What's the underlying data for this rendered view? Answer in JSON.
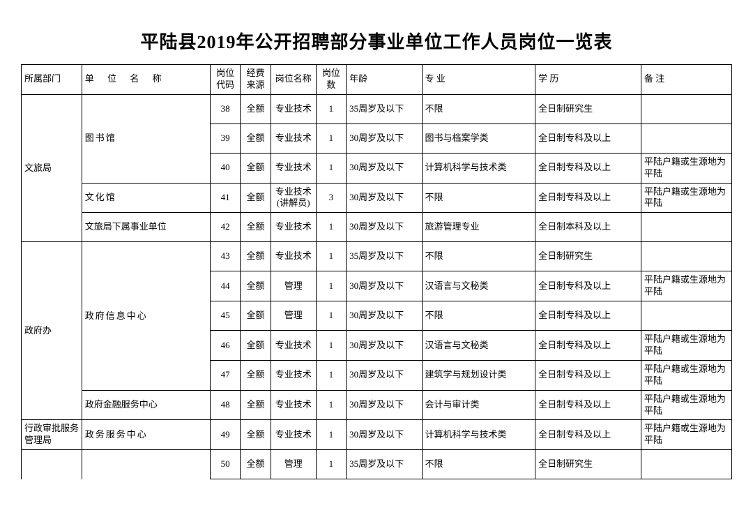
{
  "title": "平陆县2019年公开招聘部分事业单位工作人员岗位一览表",
  "headers": {
    "dept": "所属部门",
    "unit": "单 位 名 称",
    "code": "岗位代码",
    "fund": "经费来源",
    "pos": "岗位名称",
    "cnt": "岗位数",
    "age": "年龄",
    "major": "专 业",
    "edu": "学 历",
    "note": "备 注"
  },
  "depts": {
    "d1": "文旅局",
    "d2": "政府办",
    "d3": "行政审批服务管理局"
  },
  "units": {
    "u1": "图书馆",
    "u2": "文化馆",
    "u3": "文旅局下属事业单位",
    "u4": "政府信息中心",
    "u5": "政府金融服务中心",
    "u6": "政务服务中心"
  },
  "rows": [
    {
      "code": "38",
      "fund": "全额",
      "pos": "专业技术",
      "cnt": "1",
      "age": "35周岁及以下",
      "major": "不限",
      "edu": "全日制研究生",
      "note": ""
    },
    {
      "code": "39",
      "fund": "全额",
      "pos": "专业技术",
      "cnt": "1",
      "age": "30周岁及以下",
      "major": "图书与档案学类",
      "edu": "全日制专科及以上",
      "note": ""
    },
    {
      "code": "40",
      "fund": "全额",
      "pos": "专业技术",
      "cnt": "1",
      "age": "30周岁及以下",
      "major": "计算机科学与技术类",
      "edu": "全日制专科及以上",
      "note": "平陆户籍或生源地为平陆"
    },
    {
      "code": "41",
      "fund": "全额",
      "pos": "专业技术(讲解员)",
      "cnt": "3",
      "age": "30周岁及以下",
      "major": "不限",
      "edu": "全日制专科及以上",
      "note": "平陆户籍或生源地为平陆"
    },
    {
      "code": "42",
      "fund": "全额",
      "pos": "专业技术",
      "cnt": "1",
      "age": "30周岁及以下",
      "major": "旅游管理专业",
      "edu": "全日制本科及以上",
      "note": ""
    },
    {
      "code": "43",
      "fund": "全额",
      "pos": "专业技术",
      "cnt": "1",
      "age": "35周岁及以下",
      "major": "不限",
      "edu": "全日制研究生",
      "note": ""
    },
    {
      "code": "44",
      "fund": "全额",
      "pos": "管理",
      "cnt": "1",
      "age": "30周岁及以下",
      "major": "汉语言与文秘类",
      "edu": "全日制专科及以上",
      "note": "平陆户籍或生源地为平陆"
    },
    {
      "code": "45",
      "fund": "全额",
      "pos": "管理",
      "cnt": "1",
      "age": "30周岁及以下",
      "major": "不限",
      "edu": "全日制专科及以上",
      "note": ""
    },
    {
      "code": "46",
      "fund": "全额",
      "pos": "专业技术",
      "cnt": "1",
      "age": "30周岁及以下",
      "major": "汉语言与文秘类",
      "edu": "全日制专科及以上",
      "note": "平陆户籍或生源地为平陆"
    },
    {
      "code": "47",
      "fund": "全额",
      "pos": "专业技术",
      "cnt": "1",
      "age": "30周岁及以下",
      "major": "建筑学与规划设计类",
      "edu": "全日制专科及以上",
      "note": "平陆户籍或生源地为平陆"
    },
    {
      "code": "48",
      "fund": "全额",
      "pos": "专业技术",
      "cnt": "1",
      "age": "30周岁及以下",
      "major": "会计与审计类",
      "edu": "全日制专科及以上",
      "note": "平陆户籍或生源地为平陆"
    },
    {
      "code": "49",
      "fund": "全额",
      "pos": "专业技术",
      "cnt": "1",
      "age": "30周岁及以下",
      "major": "计算机科学与技术类",
      "edu": "全日制专科及以上",
      "note": "平陆户籍或生源地为平陆"
    },
    {
      "code": "50",
      "fund": "全额",
      "pos": "管理",
      "cnt": "1",
      "age": "35周岁及以下",
      "major": "不限",
      "edu": "全日制研究生",
      "note": ""
    }
  ],
  "style": {
    "background_color": "#ffffff",
    "border_color": "#000000",
    "title_fontsize": 26,
    "body_fontsize": 13,
    "font_family": "SimSun"
  }
}
